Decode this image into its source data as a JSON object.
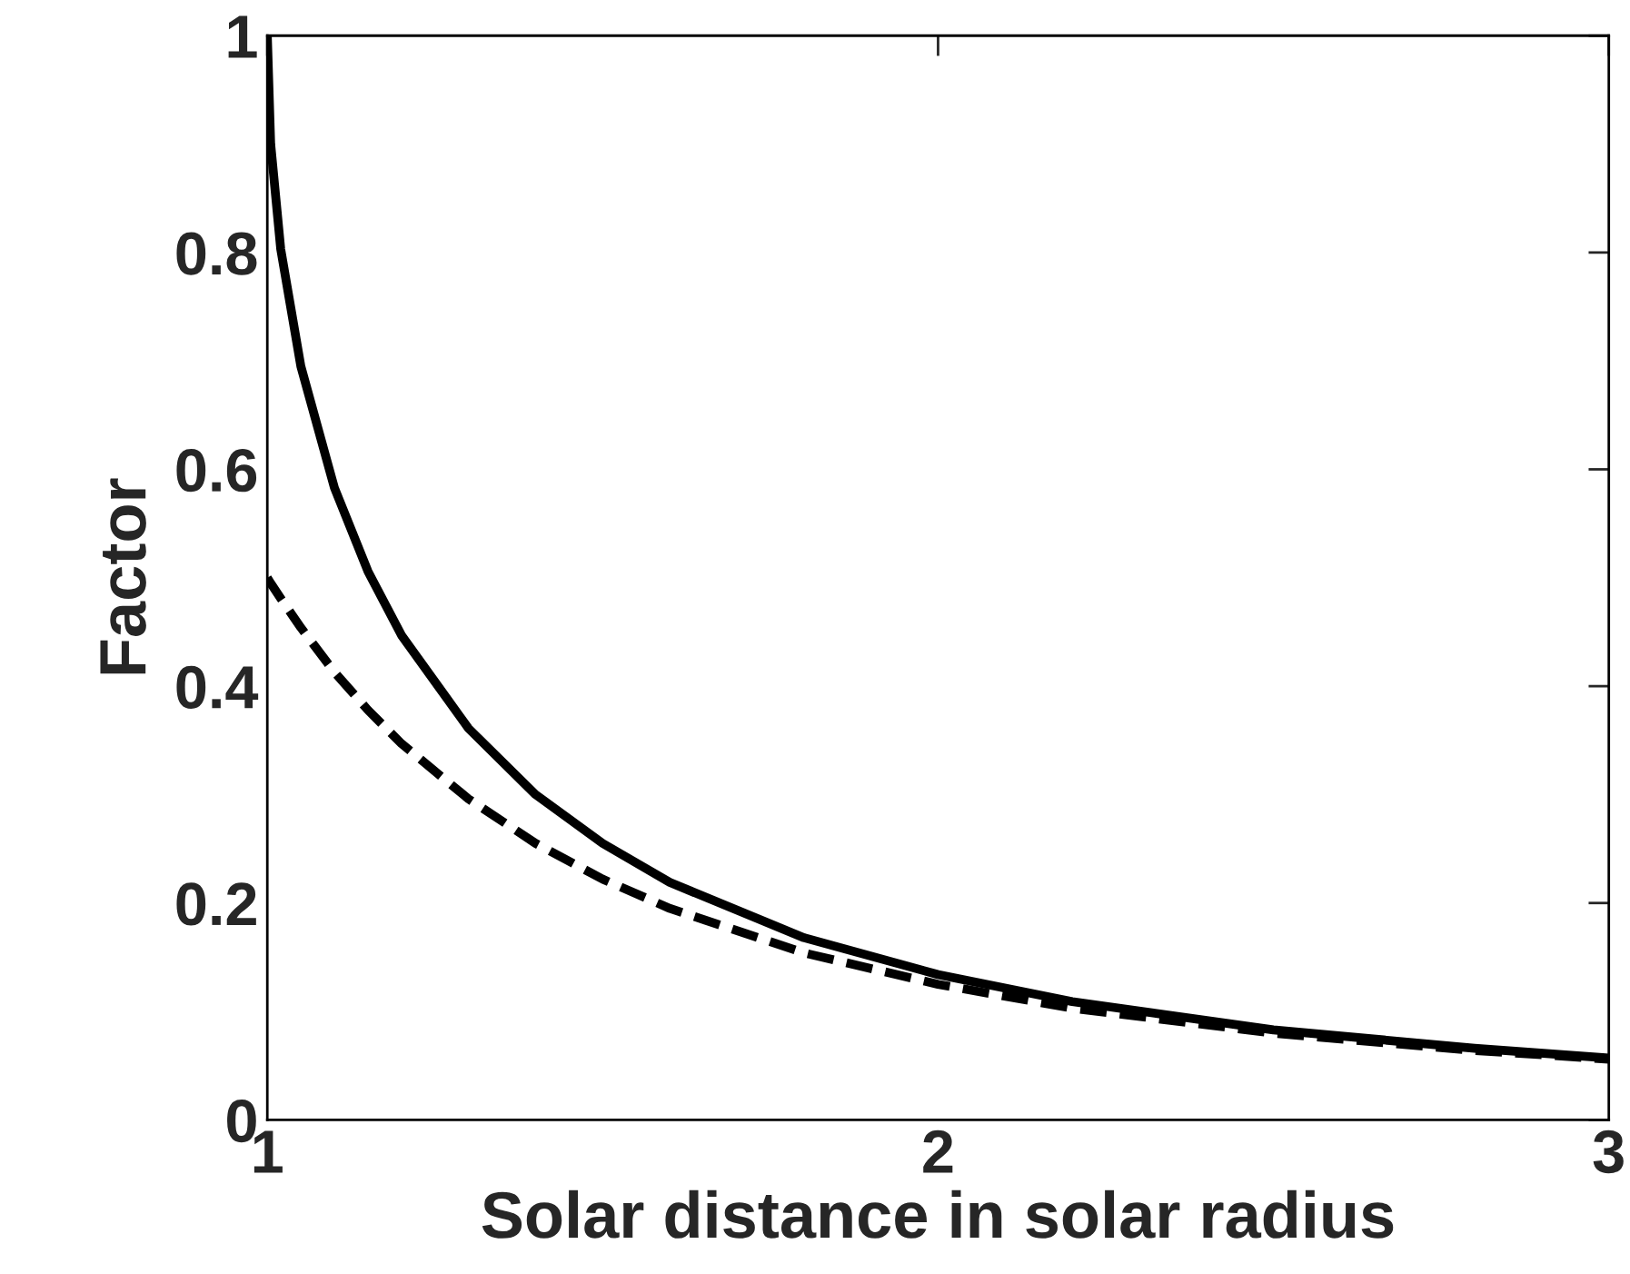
{
  "chart_data": {
    "type": "line",
    "xlabel": "Solar distance in solar radius",
    "ylabel": "Factor",
    "x": [
      1,
      1.005,
      1.02,
      1.05,
      1.1,
      1.15,
      1.2,
      1.3,
      1.4,
      1.5,
      1.6,
      1.8,
      2,
      2.2,
      2.5,
      2.8,
      3
    ],
    "series": [
      {
        "color": "#000000",
        "line_style": "solid",
        "values": [
          1,
          0.9,
          0.803,
          0.695,
          0.583,
          0.506,
          0.447,
          0.361,
          0.3,
          0.255,
          0.219,
          0.168,
          0.134,
          0.109,
          0.083,
          0.066,
          0.057
        ]
      },
      {
        "color": "#000000",
        "line_style": "dashed",
        "values": [
          0.5,
          0.495,
          0.481,
          0.454,
          0.413,
          0.378,
          0.347,
          0.296,
          0.255,
          0.222,
          0.195,
          0.154,
          0.125,
          0.103,
          0.08,
          0.064,
          0.056
        ]
      }
    ],
    "xlim": [
      1,
      3
    ],
    "ylim": [
      0,
      1
    ],
    "xticks": [
      1,
      2,
      3
    ],
    "yticks": [
      0,
      0.2,
      0.4,
      0.6,
      0.8,
      1
    ],
    "grid": false,
    "legend": false
  }
}
